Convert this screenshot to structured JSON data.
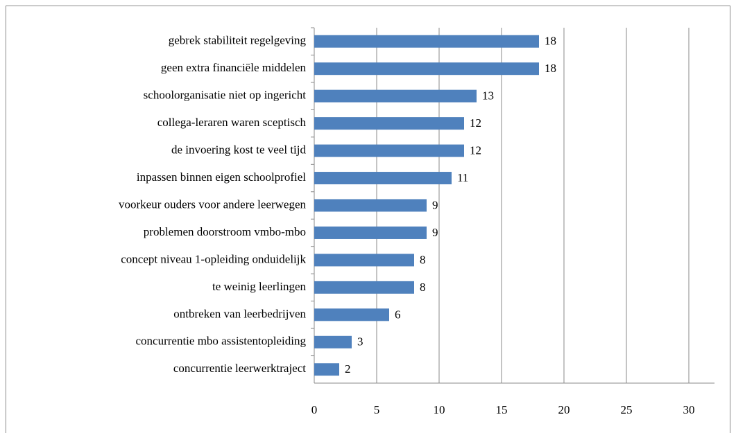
{
  "chart_data": {
    "type": "barh",
    "categories": [
      "gebrek stabiliteit regelgeving",
      "geen extra financiële middelen",
      "schoolorganisatie niet op ingericht",
      "collega-leraren waren sceptisch",
      "de invoering kost te veel tijd",
      "inpassen binnen eigen schoolprofiel",
      "voorkeur ouders voor andere leerwegen",
      "problemen doorstroom vmbo-mbo",
      "concept niveau 1-opleiding onduidelijk",
      "te weinig leerlingen",
      "ontbreken van leerbedrijven",
      "concurrentie mbo assistentopleiding",
      "concurrentie  leerwerktraject"
    ],
    "values": [
      18,
      18,
      13,
      12,
      12,
      11,
      9,
      9,
      8,
      8,
      6,
      3,
      2
    ],
    "color": "#4f81bd",
    "xlim": [
      0,
      30
    ],
    "xticks": [
      0,
      5,
      10,
      15,
      20,
      25,
      30
    ],
    "grid": true
  }
}
